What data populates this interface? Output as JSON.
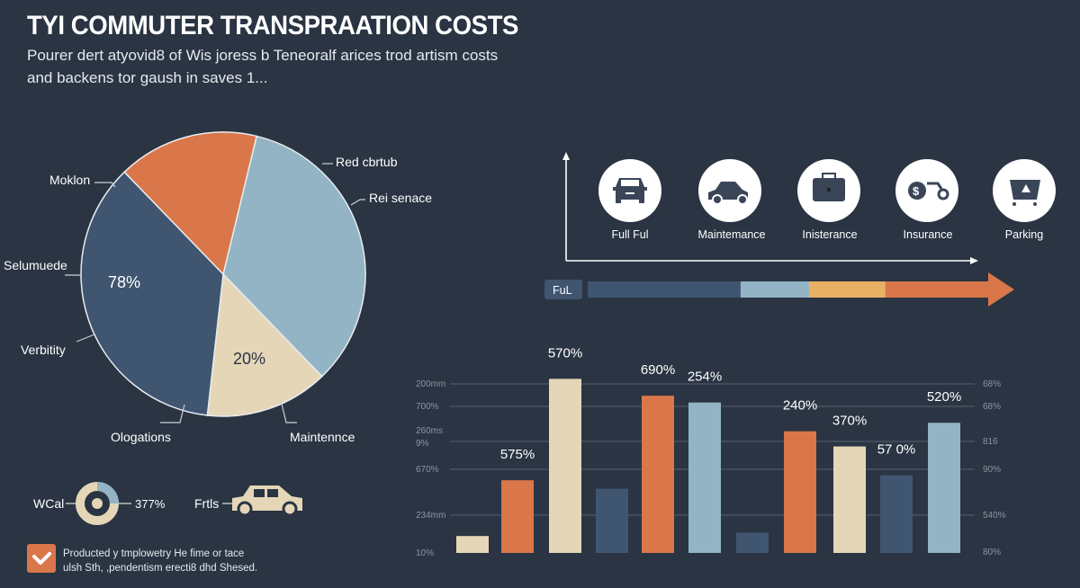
{
  "header": {
    "title": "TYI COMMUTER TRANSPRAATION COSTS",
    "subtitle_line1": "Pourer dert atyovid8 of Wis joress b Teneoralf arices trod artism costs",
    "subtitle_line2": "and backens tor gaush in saves  1..."
  },
  "colors": {
    "background": "#2a3443",
    "orange": "#d9774a",
    "light_blue": "#93b4c4",
    "beige": "#e5d6b8",
    "dark_blue": "#3f5570",
    "yellow": "#e8b064"
  },
  "chart_data": [
    {
      "type": "pie",
      "slices": [
        {
          "color": "#93b4c4",
          "share_percent": 34
        },
        {
          "color": "#e5d6b8",
          "share_percent": 14
        },
        {
          "color": "#3f5570",
          "share_percent": 36
        },
        {
          "color": "#d9774a",
          "share_percent": 16
        }
      ],
      "slice_labels": [
        "78%",
        "20%"
      ],
      "callouts": [
        "Red cbrtub",
        "Rei senace",
        "Moklon",
        "Selumuede",
        "Verbitity",
        "Ologations",
        "Maintennce"
      ]
    },
    {
      "type": "bar",
      "grid": true,
      "left_tick_labels": [
        "200mm",
        "700%",
        "260ms",
        "9%",
        "670%",
        "234mm",
        "10%"
      ],
      "right_tick_labels": [
        "68%",
        "68%",
        "816",
        "90%",
        "540%",
        "80%"
      ],
      "ylim": [
        0,
        100
      ],
      "values": [
        10,
        43,
        103,
        38,
        93,
        89,
        12,
        72,
        63,
        46,
        77
      ],
      "colors": [
        "#e5d6b8",
        "#d9774a",
        "#e5d6b8",
        "#3f5570",
        "#d9774a",
        "#93b4c4",
        "#3f5570",
        "#d9774a",
        "#e5d6b8",
        "#3f5570",
        "#93b4c4"
      ],
      "data_labels": [
        "",
        "575%",
        "570%",
        "",
        "690%",
        "254%",
        "",
        "240%",
        "370%",
        "57 0%",
        "520%"
      ]
    }
  ],
  "icons": [
    {
      "name": "car-front-icon",
      "label": "Full Ful"
    },
    {
      "name": "car-side-icon",
      "label": "Maintemance"
    },
    {
      "name": "briefcase-icon",
      "label": "Inisterance"
    },
    {
      "name": "dollar-bike-icon",
      "label": "Insurance"
    },
    {
      "name": "parking-cart-icon",
      "label": "Parking"
    }
  ],
  "progress": {
    "label": "FuL",
    "segments": [
      {
        "color": "#3f5570",
        "percent": 38
      },
      {
        "color": "#93b4c4",
        "percent": 17
      },
      {
        "color": "#e8b064",
        "percent": 19
      },
      {
        "color": "#d9774a",
        "percent": 26
      }
    ]
  },
  "legend_bottom": {
    "donut_label": "WCal",
    "donut_value": "377%",
    "car_label": "Frtls"
  },
  "note": {
    "line1": "Producted y tmplowetry He fime or tace",
    "line2": "ulsh Sth, ,pendentism erecti8 dhd Shesed."
  }
}
